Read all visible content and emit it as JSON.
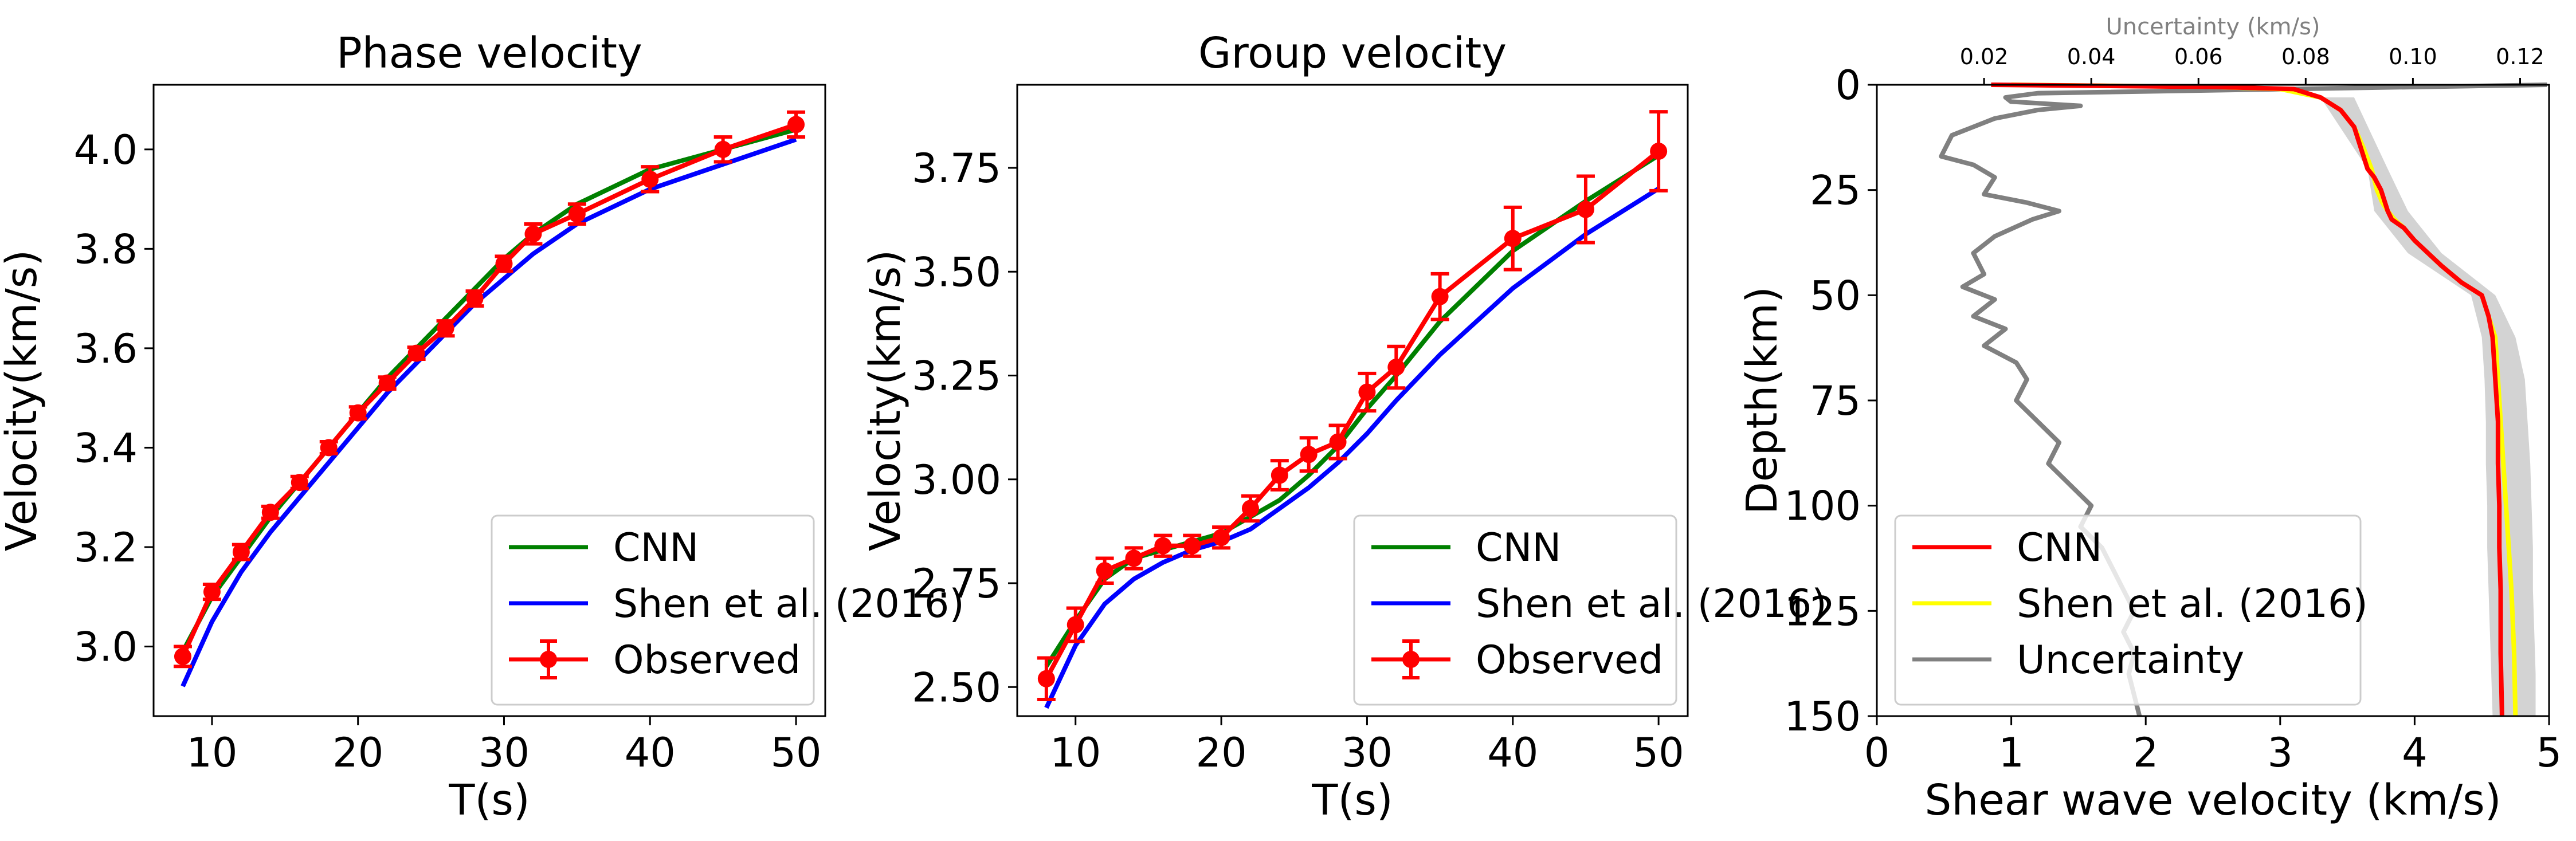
{
  "colors": {
    "cnn": "#008000",
    "shen": "#0000ff",
    "observed": "#ff0000",
    "cnn_profile": "#ff0000",
    "shen_profile": "#ffff00",
    "uncertainty": "#808080",
    "band": "#d3d3d3"
  },
  "chart_data": [
    {
      "type": "line",
      "title": "Phase velocity",
      "xlabel": "T(s)",
      "ylabel": "Velocity(km/s)",
      "xlim": [
        6,
        52
      ],
      "ylim": [
        2.86,
        4.13
      ],
      "xticks": [
        10,
        20,
        30,
        40,
        50
      ],
      "yticks": [
        3.0,
        3.2,
        3.4,
        3.6,
        3.8,
        4.0
      ],
      "legend": "lower-right",
      "series": [
        {
          "name": "CNN",
          "color": "#008000",
          "x": [
            8,
            10,
            12,
            14,
            16,
            18,
            20,
            22,
            24,
            26,
            28,
            30,
            32,
            35,
            40,
            45,
            50
          ],
          "y": [
            2.99,
            3.1,
            3.18,
            3.26,
            3.33,
            3.4,
            3.47,
            3.54,
            3.6,
            3.66,
            3.72,
            3.78,
            3.83,
            3.89,
            3.96,
            4.0,
            4.04
          ]
        },
        {
          "name": "Shen et al. (2016)",
          "color": "#0000ff",
          "x": [
            8,
            10,
            12,
            14,
            16,
            18,
            20,
            22,
            24,
            26,
            28,
            30,
            32,
            35,
            40,
            45,
            50
          ],
          "y": [
            2.92,
            3.05,
            3.15,
            3.23,
            3.3,
            3.37,
            3.44,
            3.51,
            3.57,
            3.63,
            3.69,
            3.74,
            3.79,
            3.85,
            3.92,
            3.97,
            4.02
          ]
        },
        {
          "name": "Observed",
          "color": "#ff0000",
          "errorbars": true,
          "x": [
            8,
            10,
            12,
            14,
            16,
            18,
            20,
            22,
            24,
            26,
            28,
            30,
            32,
            35,
            40,
            45,
            50
          ],
          "y": [
            2.98,
            3.11,
            3.19,
            3.27,
            3.33,
            3.4,
            3.47,
            3.53,
            3.59,
            3.64,
            3.7,
            3.77,
            3.83,
            3.87,
            3.94,
            4.0,
            4.05
          ],
          "err": [
            0.02,
            0.015,
            0.015,
            0.012,
            0.012,
            0.012,
            0.012,
            0.012,
            0.012,
            0.015,
            0.015,
            0.015,
            0.02,
            0.02,
            0.025,
            0.025,
            0.025
          ]
        }
      ]
    },
    {
      "type": "line",
      "title": "Group velocity",
      "xlabel": "T(s)",
      "ylabel": "Velocity(km/s)",
      "xlim": [
        6,
        52
      ],
      "ylim": [
        2.43,
        3.95
      ],
      "xticks": [
        10,
        20,
        30,
        40,
        50
      ],
      "yticks": [
        2.5,
        2.75,
        3.0,
        3.25,
        3.5,
        3.75
      ],
      "ytick_labels": [
        "2.50",
        "2.75",
        "3.00",
        "3.25",
        "3.50",
        "3.75"
      ],
      "legend": "lower-right",
      "series": [
        {
          "name": "CNN",
          "color": "#008000",
          "x": [
            8,
            10,
            12,
            14,
            16,
            18,
            20,
            22,
            24,
            26,
            28,
            30,
            32,
            35,
            40,
            45,
            50
          ],
          "y": [
            2.55,
            2.66,
            2.76,
            2.81,
            2.83,
            2.85,
            2.87,
            2.91,
            2.95,
            3.01,
            3.08,
            3.17,
            3.25,
            3.38,
            3.55,
            3.67,
            3.78
          ]
        },
        {
          "name": "Shen et al. (2016)",
          "color": "#0000ff",
          "x": [
            8,
            10,
            12,
            14,
            16,
            18,
            20,
            22,
            24,
            26,
            28,
            30,
            32,
            35,
            40,
            45,
            50
          ],
          "y": [
            2.45,
            2.6,
            2.7,
            2.76,
            2.8,
            2.83,
            2.85,
            2.88,
            2.93,
            2.98,
            3.04,
            3.11,
            3.19,
            3.3,
            3.46,
            3.59,
            3.7
          ]
        },
        {
          "name": "Observed",
          "color": "#ff0000",
          "errorbars": true,
          "x": [
            8,
            10,
            12,
            14,
            16,
            18,
            20,
            22,
            24,
            26,
            28,
            30,
            32,
            35,
            40,
            45,
            50
          ],
          "y": [
            2.52,
            2.65,
            2.78,
            2.81,
            2.84,
            2.84,
            2.86,
            2.93,
            3.01,
            3.06,
            3.09,
            3.21,
            3.27,
            3.44,
            3.58,
            3.65,
            3.79
          ],
          "err": [
            0.05,
            0.04,
            0.03,
            0.025,
            0.025,
            0.025,
            0.025,
            0.03,
            0.035,
            0.04,
            0.04,
            0.045,
            0.05,
            0.055,
            0.075,
            0.08,
            0.095
          ]
        }
      ]
    },
    {
      "type": "line",
      "xlabel": "Shear wave velocity (km/s)",
      "ylabel": "Depth(km)",
      "top_xlabel": "Uncertainty (km/s)",
      "xlim": [
        0,
        5
      ],
      "ylim": [
        150,
        0
      ],
      "top_xlim": [
        0.0,
        0.1254
      ],
      "xticks": [
        0,
        1,
        2,
        3,
        4,
        5
      ],
      "yticks": [
        0,
        25,
        50,
        75,
        100,
        125,
        150
      ],
      "top_xticks": [
        0.02,
        0.04,
        0.06,
        0.08,
        0.1,
        0.12
      ],
      "top_xtick_labels": [
        "0.02",
        "0.04",
        "0.06",
        "0.08",
        "0.10",
        "0.12"
      ],
      "legend": "lower-left",
      "series": [
        {
          "name": "CNN",
          "color": "#ff0000",
          "x": [
            0.85,
            2.5,
            3.1,
            3.3,
            3.45,
            3.55,
            3.6,
            3.65,
            3.7,
            3.75,
            3.78,
            3.8,
            3.83,
            3.92,
            4.0,
            4.1,
            4.2,
            4.35,
            4.5,
            4.55,
            4.58,
            4.6,
            4.62,
            4.62,
            4.63,
            4.63,
            4.64,
            4.64,
            4.65
          ],
          "depth": [
            0,
            0.5,
            1,
            3,
            6,
            10,
            15,
            20,
            22,
            25,
            28,
            30,
            32,
            34,
            37,
            40,
            43,
            47,
            50,
            55,
            60,
            70,
            80,
            90,
            100,
            110,
            120,
            135,
            150
          ]
        },
        {
          "name": "Shen et al. (2016)",
          "color": "#ffff00",
          "x": [
            1.0,
            2.5,
            3.0,
            3.3,
            3.45,
            3.55,
            3.62,
            3.68,
            3.72,
            3.76,
            3.8,
            3.85,
            3.92,
            4.0,
            4.1,
            4.2,
            4.35,
            4.5,
            4.55,
            4.6,
            4.62,
            4.64,
            4.66,
            4.68,
            4.7,
            4.72,
            4.74,
            4.75
          ],
          "depth": [
            0,
            0.5,
            1,
            3,
            6,
            10,
            15,
            20,
            25,
            28,
            30,
            32,
            34,
            37,
            40,
            43,
            47,
            50,
            55,
            60,
            70,
            80,
            90,
            100,
            110,
            120,
            135,
            150
          ]
        },
        {
          "name": "Uncertainty",
          "color": "#808080",
          "unc": [
            0.125,
            0.03,
            0.024,
            0.025,
            0.038,
            0.03,
            0.022,
            0.014,
            0.012,
            0.018,
            0.022,
            0.02,
            0.028,
            0.034,
            0.029,
            0.022,
            0.018,
            0.02,
            0.016,
            0.022,
            0.018,
            0.024,
            0.02,
            0.026,
            0.028,
            0.026,
            0.03,
            0.034,
            0.032,
            0.036,
            0.04,
            0.038,
            0.042,
            0.044,
            0.046,
            0.048,
            0.046,
            0.048,
            0.047,
            0.048,
            0.049
          ],
          "depth": [
            0,
            2,
            3,
            4,
            5,
            6,
            8,
            12,
            17,
            19,
            22,
            26,
            28,
            30,
            32,
            36,
            40,
            45,
            48,
            51,
            55,
            58,
            62,
            66,
            70,
            75,
            80,
            85,
            90,
            95,
            100,
            105,
            110,
            115,
            120,
            125,
            130,
            135,
            140,
            145,
            150
          ]
        }
      ],
      "band": {
        "color": "#d3d3d3",
        "depth": [
          3,
          20,
          30,
          40,
          50,
          60,
          70,
          80,
          90,
          100,
          110,
          120,
          130,
          140,
          150
        ],
        "lo": [
          3.3,
          3.65,
          3.7,
          3.95,
          4.42,
          4.5,
          4.52,
          4.53,
          4.53,
          4.54,
          4.54,
          4.55,
          4.56,
          4.57,
          4.58
        ],
        "hi": [
          3.55,
          3.8,
          3.95,
          4.2,
          4.6,
          4.75,
          4.82,
          4.84,
          4.86,
          4.87,
          4.88,
          4.88,
          4.89,
          4.9,
          4.9
        ]
      }
    }
  ]
}
